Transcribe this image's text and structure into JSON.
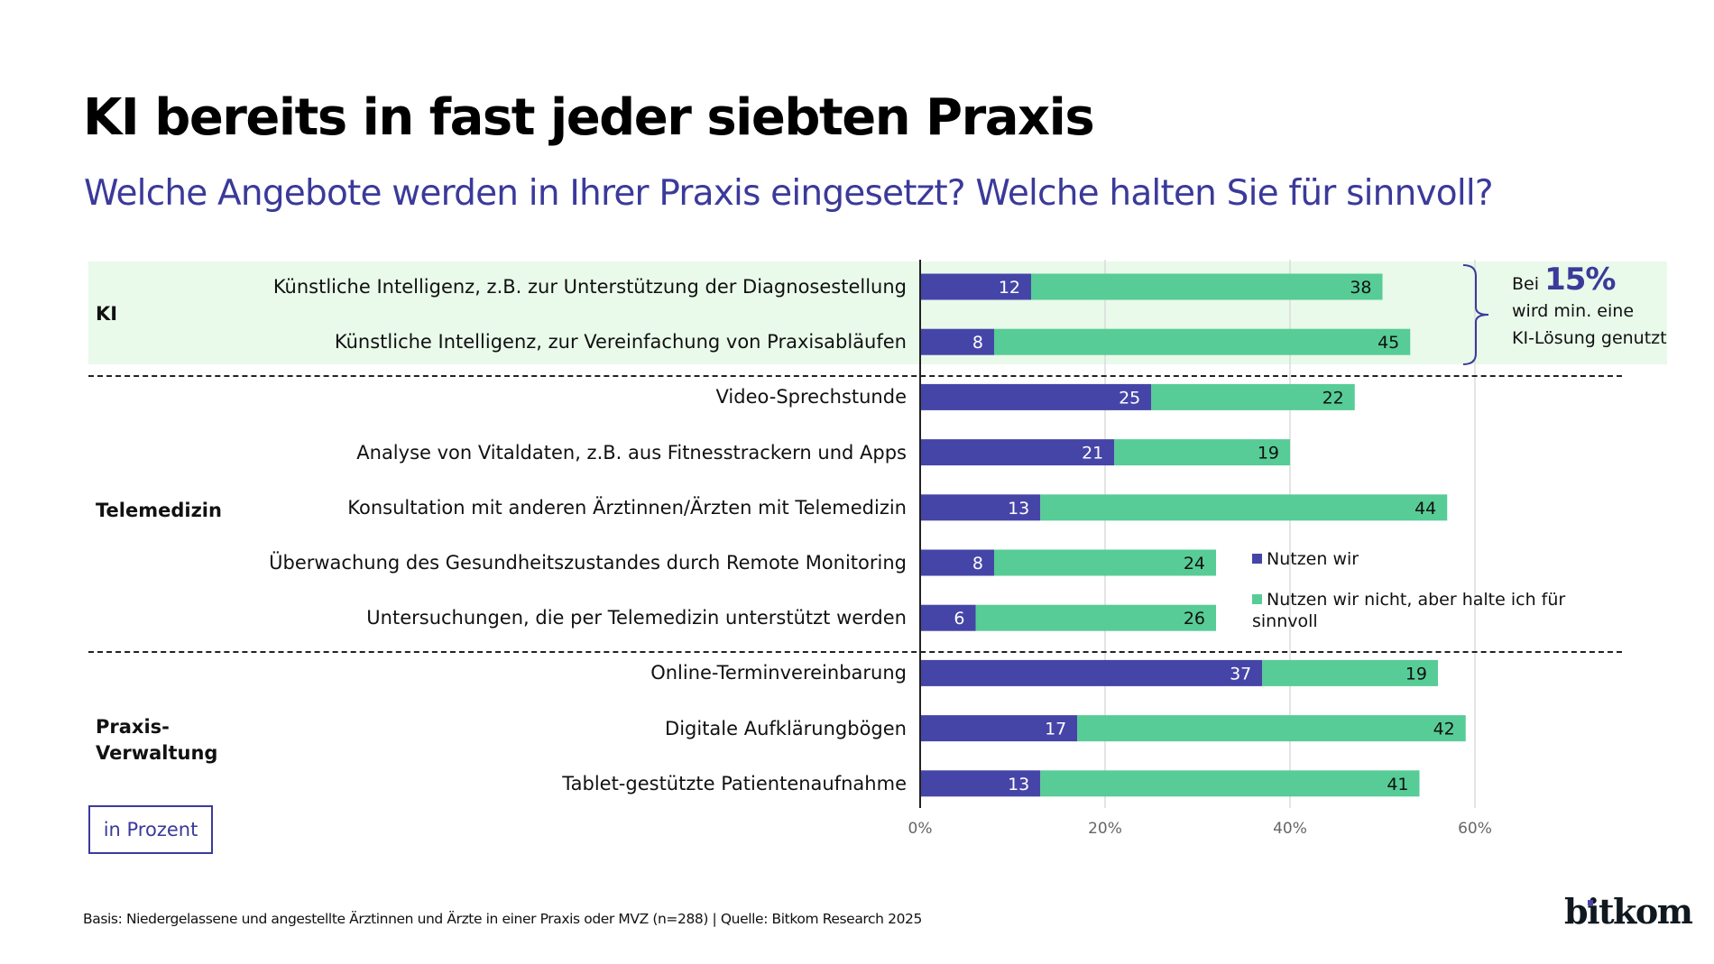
{
  "header": {
    "title": "KI bereits in fast jeder siebten Praxis",
    "subtitle": "Welche Angebote werden in Ihrer Praxis eingesetzt? Welche halten Sie für sinnvoll?"
  },
  "colors": {
    "used": "#4545a8",
    "useful": "#57cc96",
    "ki_band": "#e9f9ea",
    "accent": "#3b3a9a"
  },
  "groups": [
    {
      "label": "KI"
    },
    {
      "label": "Telemedizin"
    },
    {
      "label_line1": "Praxis-",
      "label_line2": "Verwaltung"
    }
  ],
  "callout": {
    "prefix": "Bei",
    "value": "15%",
    "line2": "wird min. eine",
    "line3": "KI-Lösung genutzt"
  },
  "unit_box": "in Prozent",
  "footer": "Basis: Niedergelassene und angestellte Ärztinnen und Ärzte in einer Praxis oder MVZ (n=288) | Quelle: Bitkom Research 2025",
  "logo": "bitkom",
  "chart_data": {
    "type": "bar",
    "orientation": "horizontal",
    "stacked": true,
    "title": "KI bereits in fast jeder siebten Praxis",
    "subtitle": "Welche Angebote werden in Ihrer Praxis eingesetzt? Welche halten Sie für sinnvoll?",
    "xlabel": "",
    "ylabel": "",
    "unit": "in Prozent",
    "xlim": [
      0,
      70
    ],
    "xticks": [
      0,
      20,
      40,
      60
    ],
    "xtick_labels": [
      "0%",
      "20%",
      "40%",
      "60%"
    ],
    "grid": true,
    "legend_position": "right-middle",
    "categories": [
      "Künstliche Intelligenz, z.B. zur Unterstützung der Diagnosestellung",
      "Künstliche Intelligenz, zur Vereinfachung von Praxisabläufen",
      "Video-Sprechstunde",
      "Analyse von Vitaldaten, z.B. aus Fitnesstrackern und Apps",
      "Konsultation mit anderen Ärztinnen/Ärzten mit Telemedizin",
      "Überwachung des Gesundheitszustandes durch Remote Monitoring",
      "Untersuchungen, die per Telemedizin unterstützt werden",
      "Online-Terminvereinbarung",
      "Digitale Aufklärungbögen",
      "Tablet-gestützte Patientenaufnahme"
    ],
    "category_groups": [
      "KI",
      "KI",
      "Telemedizin",
      "Telemedizin",
      "Telemedizin",
      "Telemedizin",
      "Telemedizin",
      "Praxis-Verwaltung",
      "Praxis-Verwaltung",
      "Praxis-Verwaltung"
    ],
    "series": [
      {
        "name": "Nutzen wir",
        "color": "#4545a8",
        "values": [
          12,
          8,
          25,
          21,
          13,
          8,
          6,
          37,
          17,
          13
        ]
      },
      {
        "name": "Nutzen wir nicht, aber halte ich für sinnvoll",
        "color": "#57cc96",
        "values": [
          38,
          45,
          22,
          19,
          44,
          24,
          26,
          19,
          42,
          41
        ]
      }
    ],
    "annotations": [
      "Bei 15% wird min. eine KI-Lösung genutzt"
    ]
  }
}
